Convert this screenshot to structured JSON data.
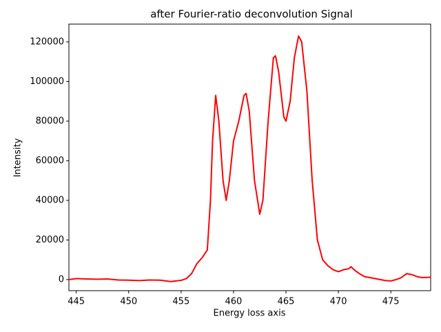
{
  "chart_data": {
    "type": "line",
    "title": "after Fourier-ratio deconvolution Signal",
    "xlabel": "Energy loss axis",
    "ylabel": "Intensity",
    "x": [
      444.3,
      445,
      446,
      447,
      448,
      449,
      450,
      451,
      452,
      453,
      454,
      455,
      455.5,
      456,
      456.5,
      457,
      457.5,
      457.8,
      458,
      458.3,
      458.6,
      459,
      459.3,
      459.6,
      460,
      460.5,
      461,
      461.2,
      461.5,
      462,
      462.5,
      462.8,
      463.3,
      463.8,
      464,
      464.3,
      464.8,
      465,
      465.4,
      465.8,
      466.2,
      466.5,
      467,
      467.5,
      468,
      468.5,
      469,
      469.5,
      470,
      470.5,
      471,
      471.2,
      471.5,
      472,
      472.5,
      473,
      474,
      474.5,
      475,
      475.5,
      476,
      476.5,
      477,
      477.5,
      478,
      478.8
    ],
    "series": [
      {
        "name": "Signal",
        "color": "#ff0000",
        "values": [
          0,
          500,
          300,
          200,
          300,
          -200,
          -300,
          -500,
          -200,
          -300,
          -1000,
          -400,
          500,
          3000,
          8000,
          11000,
          15000,
          40000,
          70000,
          93000,
          80000,
          50000,
          40000,
          50000,
          70000,
          80000,
          93000,
          94000,
          85000,
          50000,
          33000,
          40000,
          80000,
          112000,
          113000,
          105000,
          82000,
          80000,
          90000,
          112000,
          123000,
          120000,
          95000,
          50000,
          20000,
          10000,
          7000,
          5000,
          4000,
          5000,
          5500,
          6500,
          5000,
          3000,
          1500,
          1000,
          0,
          -500,
          -700,
          0,
          1000,
          3000,
          2500,
          1500,
          1000,
          1200
        ]
      }
    ],
    "xlim": [
      444.3,
      478.8
    ],
    "ylim": [
      -5600,
      129000
    ],
    "xticks": [
      445,
      450,
      455,
      460,
      465,
      470,
      475
    ],
    "yticks": [
      0,
      20000,
      40000,
      60000,
      80000,
      100000,
      120000
    ]
  }
}
